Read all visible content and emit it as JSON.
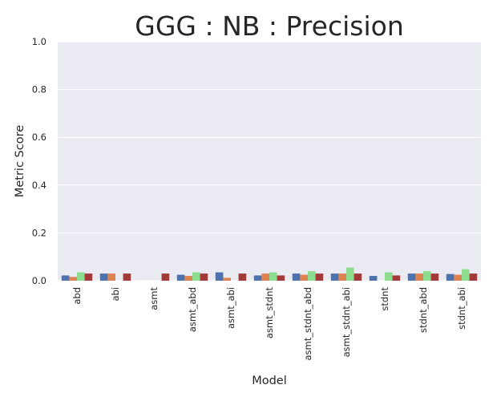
{
  "chart_data": {
    "type": "bar",
    "title": "GGG : NB : Precision",
    "xlabel": "Model",
    "ylabel": "Metric Score",
    "ylim": [
      0,
      1.0
    ],
    "yticks": [
      "0.0",
      "0.2",
      "0.4",
      "0.6",
      "0.8",
      "1.0"
    ],
    "grid": true,
    "legend": "none",
    "categories": [
      "abd",
      "abi",
      "asmt",
      "asmt_abd",
      "asmt_abi",
      "asmt_stdnt",
      "asmt_stdnt_abd",
      "asmt_stdnt_abi",
      "stdnt",
      "stdnt_abd",
      "stdnt_abi"
    ],
    "series": [
      {
        "color": "#4c72b0",
        "values": [
          0.022,
          0.03,
          0.0,
          0.025,
          0.035,
          0.022,
          0.03,
          0.03,
          0.02,
          0.03,
          0.028
        ]
      },
      {
        "color": "#dd8452",
        "values": [
          0.016,
          0.03,
          0.0,
          0.02,
          0.012,
          0.03,
          0.025,
          0.03,
          0.0,
          0.03,
          0.025
        ]
      },
      {
        "color": "#8fdc8f",
        "values": [
          0.035,
          0.0,
          0.0,
          0.035,
          0.0,
          0.035,
          0.04,
          0.055,
          0.035,
          0.04,
          0.048
        ]
      },
      {
        "color": "#a33a3a",
        "values": [
          0.03,
          0.03,
          0.03,
          0.03,
          0.03,
          0.022,
          0.03,
          0.03,
          0.022,
          0.03,
          0.03
        ]
      }
    ]
  }
}
